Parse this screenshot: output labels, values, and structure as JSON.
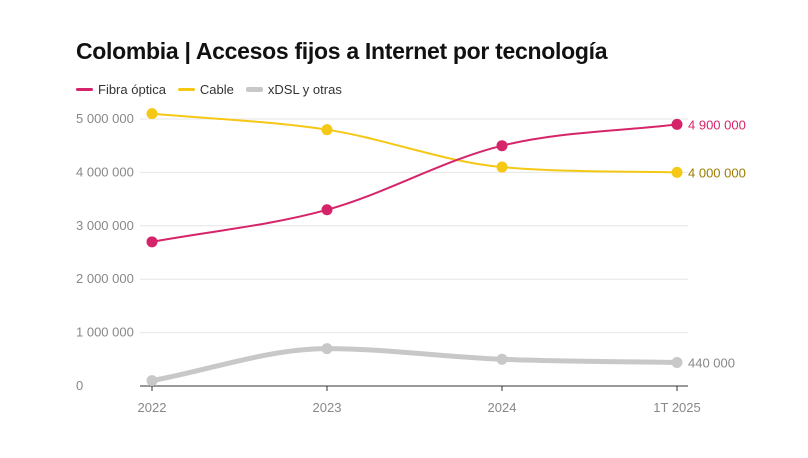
{
  "chart_data": {
    "type": "line",
    "title": "Colombia | Accesos fijos a Internet por tecnología",
    "categories": [
      "2022",
      "2023",
      "2024",
      "1T 2025"
    ],
    "ylim": [
      0,
      5000000
    ],
    "yticks": [
      0,
      1000000,
      2000000,
      3000000,
      4000000,
      5000000
    ],
    "ytick_labels": [
      "0",
      "1 000 000",
      "2 000 000",
      "3 000 000",
      "4 000 000",
      "5 000 000"
    ],
    "grid": true,
    "legend_position": "top-left",
    "series": [
      {
        "name": "Fibra óptica",
        "color": "#d6246b",
        "label_color": "#d6246b",
        "values": [
          2700000,
          3300000,
          4500000,
          4900000
        ],
        "end_label": "4 900 000"
      },
      {
        "name": "Cable",
        "color": "#f5c816",
        "label_color": "#9c7c00",
        "values": [
          5100000,
          4800000,
          4100000,
          4000000
        ],
        "end_label": "4 000 000"
      },
      {
        "name": "xDSL y otras",
        "color": "#c8c8c8",
        "label_color": "#888888",
        "values": [
          100000,
          700000,
          500000,
          440000
        ],
        "end_label": "440 000"
      }
    ]
  }
}
